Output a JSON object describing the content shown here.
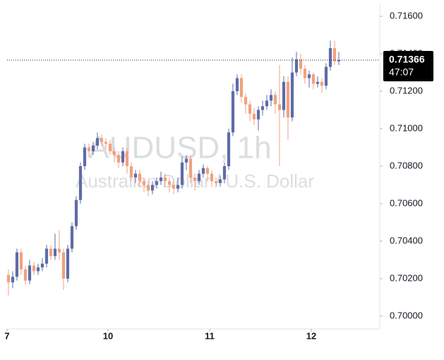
{
  "chart_data": {
    "type": "candlestick",
    "watermark": "AUDUSD, 1h",
    "watermark_subtitle": "Australian Dollar / U.S. Dollar",
    "up_color": "#5d6ca8",
    "down_color": "#f2a17e",
    "open": [
      0.7022,
      0.7018,
      0.7021,
      0.7034,
      0.7025,
      0.7019,
      0.7027,
      0.7024,
      0.7026,
      0.7028,
      0.7036,
      0.7032,
      0.7036,
      0.7034,
      0.702,
      0.7036,
      0.7048,
      0.7062,
      0.708,
      0.709,
      0.7088,
      0.7091,
      0.7095,
      0.7093,
      0.7092,
      0.7088,
      0.7086,
      0.7082,
      0.7088,
      0.708,
      0.7074,
      0.7076,
      0.7072,
      0.707,
      0.7067,
      0.707,
      0.7072,
      0.7074,
      0.7072,
      0.707,
      0.7068,
      0.707,
      0.7082,
      0.7084,
      0.7074,
      0.7072,
      0.7076,
      0.7079,
      0.7076,
      0.7072,
      0.7071,
      0.7073,
      0.708,
      0.7098,
      0.712,
      0.7127,
      0.7117,
      0.7113,
      0.7108,
      0.7105,
      0.711,
      0.7112,
      0.7115,
      0.7118,
      0.7113,
      0.711,
      0.7125,
      0.7106,
      0.713,
      0.7137,
      0.7132,
      0.7127,
      0.7129,
      0.7124,
      0.7125,
      0.7123,
      0.7133,
      0.7143,
      0.7136
    ],
    "high": [
      0.7025,
      0.7024,
      0.7036,
      0.7036,
      0.7027,
      0.703,
      0.7029,
      0.7028,
      0.7031,
      0.7038,
      0.7038,
      0.7044,
      0.7046,
      0.7036,
      0.7038,
      0.705,
      0.7064,
      0.7082,
      0.7092,
      0.7092,
      0.7093,
      0.7098,
      0.7097,
      0.7095,
      0.7094,
      0.709,
      0.7088,
      0.709,
      0.709,
      0.7082,
      0.7078,
      0.7078,
      0.7074,
      0.7072,
      0.7072,
      0.7074,
      0.7077,
      0.7076,
      0.7074,
      0.7072,
      0.7074,
      0.7085,
      0.7086,
      0.7086,
      0.7076,
      0.7078,
      0.7081,
      0.708,
      0.7078,
      0.7074,
      0.7075,
      0.7082,
      0.71,
      0.7124,
      0.7129,
      0.7129,
      0.7119,
      0.7115,
      0.7111,
      0.7112,
      0.7115,
      0.7118,
      0.7121,
      0.712,
      0.7134,
      0.7128,
      0.7128,
      0.7138,
      0.7141,
      0.714,
      0.7134,
      0.7131,
      0.713,
      0.7128,
      0.7127,
      0.7135,
      0.7147,
      0.7147,
      0.7141
    ],
    "low": [
      0.7011,
      0.7015,
      0.7019,
      0.7022,
      0.7017,
      0.7017,
      0.7022,
      0.7022,
      0.7024,
      0.7026,
      0.703,
      0.703,
      0.703,
      0.7014,
      0.7018,
      0.7034,
      0.7046,
      0.706,
      0.7078,
      0.7085,
      0.7086,
      0.7089,
      0.7091,
      0.7089,
      0.7086,
      0.7082,
      0.7079,
      0.708,
      0.7076,
      0.7072,
      0.7071,
      0.7069,
      0.7066,
      0.7064,
      0.7065,
      0.7068,
      0.707,
      0.7069,
      0.7066,
      0.7065,
      0.7066,
      0.7068,
      0.7078,
      0.7071,
      0.7067,
      0.707,
      0.7074,
      0.7072,
      0.7069,
      0.7069,
      0.7069,
      0.7071,
      0.7078,
      0.7096,
      0.7118,
      0.7114,
      0.7108,
      0.7104,
      0.7102,
      0.7099,
      0.7107,
      0.711,
      0.7112,
      0.7108,
      0.708,
      0.7106,
      0.7094,
      0.7104,
      0.7128,
      0.7129,
      0.7124,
      0.7122,
      0.7121,
      0.7122,
      0.7119,
      0.7121,
      0.7131,
      0.7134,
      0.7134
    ],
    "close": [
      0.7018,
      0.7021,
      0.7034,
      0.7025,
      0.7019,
      0.7027,
      0.7024,
      0.7026,
      0.7028,
      0.7036,
      0.7032,
      0.7036,
      0.7034,
      0.702,
      0.7036,
      0.7048,
      0.7062,
      0.708,
      0.709,
      0.7088,
      0.7091,
      0.7095,
      0.7093,
      0.7092,
      0.7088,
      0.7086,
      0.7082,
      0.7088,
      0.708,
      0.7074,
      0.7076,
      0.7072,
      0.707,
      0.7067,
      0.707,
      0.7072,
      0.7074,
      0.7072,
      0.707,
      0.7068,
      0.707,
      0.7082,
      0.7084,
      0.7074,
      0.7072,
      0.7076,
      0.7079,
      0.7076,
      0.7072,
      0.7071,
      0.7073,
      0.708,
      0.7098,
      0.712,
      0.7127,
      0.7117,
      0.7113,
      0.7108,
      0.7105,
      0.711,
      0.7112,
      0.7115,
      0.7118,
      0.7113,
      0.711,
      0.7125,
      0.7106,
      0.713,
      0.7137,
      0.7132,
      0.7127,
      0.7129,
      0.7124,
      0.7125,
      0.7123,
      0.7133,
      0.7143,
      0.7136,
      0.71366
    ],
    "last_price": 0.71366,
    "countdown": "47:07",
    "xlim": [
      -0.33,
      87.67
    ],
    "xticks": [
      {
        "value": -0.33,
        "label": "7"
      },
      {
        "value": 23.5,
        "label": "10"
      },
      {
        "value": 47.5,
        "label": "11"
      },
      {
        "value": 71.5,
        "label": "12"
      }
    ],
    "ylim": [
      0.69932,
      0.71668
    ],
    "yticks": [
      {
        "value": 0.7,
        "label": "0.70000"
      },
      {
        "value": 0.702,
        "label": "0.70200"
      },
      {
        "value": 0.704,
        "label": "0.70400"
      },
      {
        "value": 0.706,
        "label": "0.70600"
      },
      {
        "value": 0.708,
        "label": "0.70800"
      },
      {
        "value": 0.71,
        "label": "0.71000"
      },
      {
        "value": 0.712,
        "label": "0.71200"
      },
      {
        "value": 0.714,
        "label": "0.71400"
      },
      {
        "value": 0.716,
        "label": "0.71600"
      }
    ]
  }
}
